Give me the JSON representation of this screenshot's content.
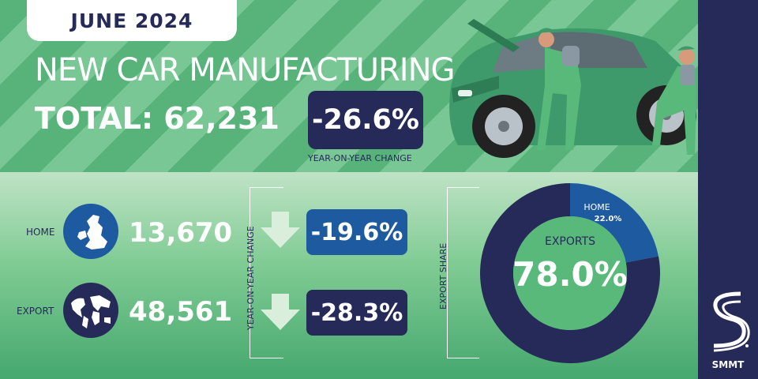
{
  "header": {
    "date": "JUNE 2024",
    "title": "NEW CAR MANUFACTURING",
    "total": "TOTAL: 62,231",
    "yoy_change": "-26.6%",
    "yoy_caption": "YEAR-ON-YEAR CHANGE"
  },
  "rows": {
    "home": {
      "label": "HOME",
      "count": "13,670",
      "change": "-19.6%"
    },
    "export": {
      "label": "EXPORT",
      "count": "48,561",
      "change": "-28.3%"
    }
  },
  "side_labels": {
    "yoy": "YEAR-ON-YEAR CHANGE",
    "export_share": "EXPORT SHARE"
  },
  "chart_data": {
    "type": "pie",
    "style": "donut",
    "slices": [
      {
        "label": "HOME",
        "value": 22.0,
        "display": "22.0%",
        "color": "#1e5a9f"
      },
      {
        "label": "EXPORTS",
        "value": 78.0,
        "display": "78.0%",
        "color": "#262a59"
      }
    ],
    "center_label": "EXPORTS",
    "center_value": "78.0%"
  },
  "brand": {
    "name": "SMMT"
  },
  "colors": {
    "navy": "#262a59",
    "blue": "#1e5a9f",
    "green": "#58b97b",
    "light_green": "#bfe3c5"
  },
  "icons": {
    "home": "uk-map-icon",
    "export": "world-map-icon",
    "change": "arrow-down-icon"
  }
}
